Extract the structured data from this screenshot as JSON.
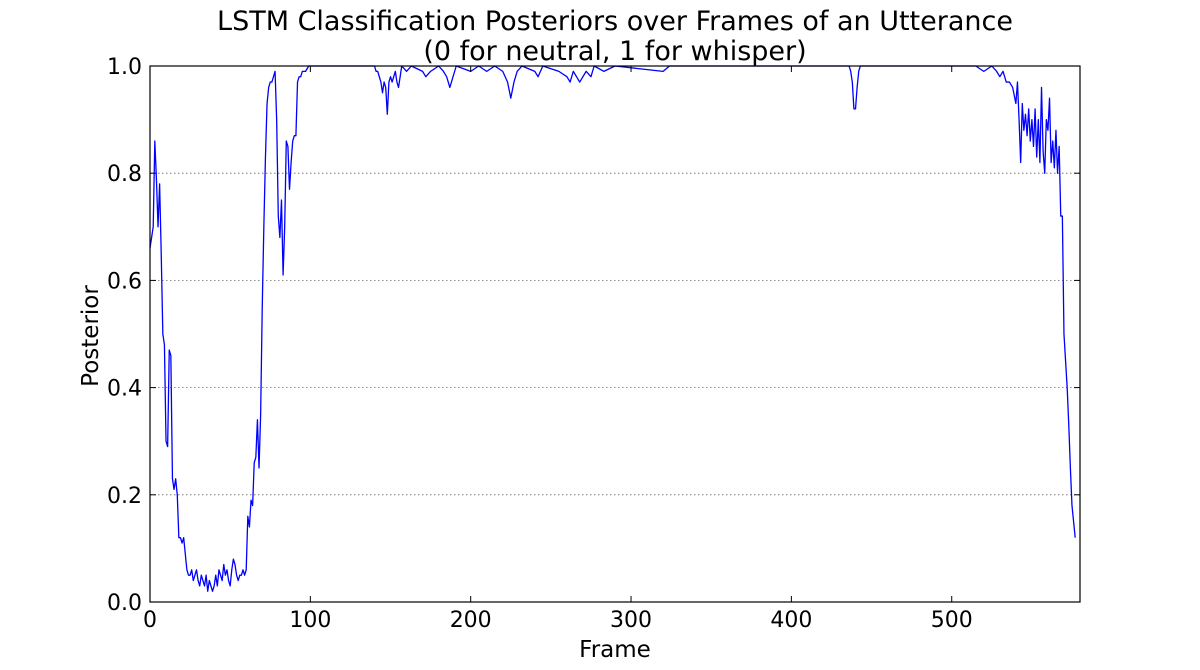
{
  "chart_data": {
    "type": "line",
    "title_lines": [
      "LSTM Classification Posteriors over Frames of an Utterance",
      "(0 for neutral, 1 for whisper)"
    ],
    "xlabel": "Frame",
    "ylabel": "Posterior",
    "xlim": [
      0,
      580
    ],
    "ylim": [
      0.0,
      1.0
    ],
    "x_ticks": [
      0,
      100,
      200,
      300,
      400,
      500
    ],
    "x_tick_labels": [
      "0",
      "100",
      "200",
      "300",
      "400",
      "500"
    ],
    "y_ticks": [
      0.0,
      0.2,
      0.4,
      0.6,
      0.8,
      1.0
    ],
    "y_tick_labels": [
      "0.0",
      "0.2",
      "0.4",
      "0.6",
      "0.8",
      "1.0"
    ],
    "grid": "horizontal dotted",
    "series": [
      {
        "color": "#0000ff",
        "points": [
          [
            0,
            0.66
          ],
          [
            1,
            0.68
          ],
          [
            2,
            0.7
          ],
          [
            3,
            0.86
          ],
          [
            4,
            0.79
          ],
          [
            5,
            0.7
          ],
          [
            6,
            0.78
          ],
          [
            7,
            0.65
          ],
          [
            8,
            0.5
          ],
          [
            9,
            0.48
          ],
          [
            10,
            0.3
          ],
          [
            11,
            0.29
          ],
          [
            12,
            0.47
          ],
          [
            13,
            0.46
          ],
          [
            14,
            0.23
          ],
          [
            15,
            0.21
          ],
          [
            16,
            0.23
          ],
          [
            17,
            0.2
          ],
          [
            18,
            0.12
          ],
          [
            19,
            0.12
          ],
          [
            20,
            0.11
          ],
          [
            21,
            0.12
          ],
          [
            22,
            0.09
          ],
          [
            23,
            0.06
          ],
          [
            24,
            0.05
          ],
          [
            25,
            0.05
          ],
          [
            26,
            0.06
          ],
          [
            27,
            0.04
          ],
          [
            28,
            0.05
          ],
          [
            29,
            0.06
          ],
          [
            30,
            0.04
          ],
          [
            31,
            0.03
          ],
          [
            32,
            0.05
          ],
          [
            33,
            0.04
          ],
          [
            34,
            0.03
          ],
          [
            35,
            0.05
          ],
          [
            36,
            0.02
          ],
          [
            37,
            0.04
          ],
          [
            38,
            0.03
          ],
          [
            39,
            0.02
          ],
          [
            40,
            0.03
          ],
          [
            41,
            0.05
          ],
          [
            42,
            0.03
          ],
          [
            43,
            0.06
          ],
          [
            44,
            0.05
          ],
          [
            45,
            0.04
          ],
          [
            46,
            0.07
          ],
          [
            47,
            0.05
          ],
          [
            48,
            0.06
          ],
          [
            49,
            0.04
          ],
          [
            50,
            0.03
          ],
          [
            51,
            0.06
          ],
          [
            52,
            0.08
          ],
          [
            53,
            0.07
          ],
          [
            54,
            0.05
          ],
          [
            55,
            0.04
          ],
          [
            56,
            0.05
          ],
          [
            57,
            0.05
          ],
          [
            58,
            0.06
          ],
          [
            59,
            0.05
          ],
          [
            60,
            0.06
          ],
          [
            61,
            0.16
          ],
          [
            62,
            0.14
          ],
          [
            63,
            0.19
          ],
          [
            64,
            0.18
          ],
          [
            65,
            0.26
          ],
          [
            66,
            0.27
          ],
          [
            67,
            0.34
          ],
          [
            68,
            0.25
          ],
          [
            69,
            0.35
          ],
          [
            70,
            0.55
          ],
          [
            71,
            0.7
          ],
          [
            72,
            0.83
          ],
          [
            73,
            0.93
          ],
          [
            74,
            0.96
          ],
          [
            75,
            0.97
          ],
          [
            76,
            0.97
          ],
          [
            77,
            0.98
          ],
          [
            78,
            0.99
          ],
          [
            79,
            0.9
          ],
          [
            80,
            0.72
          ],
          [
            81,
            0.68
          ],
          [
            82,
            0.75
          ],
          [
            83,
            0.61
          ],
          [
            84,
            0.7
          ],
          [
            85,
            0.86
          ],
          [
            86,
            0.85
          ],
          [
            87,
            0.77
          ],
          [
            88,
            0.82
          ],
          [
            89,
            0.86
          ],
          [
            90,
            0.87
          ],
          [
            91,
            0.87
          ],
          [
            92,
            0.97
          ],
          [
            93,
            0.98
          ],
          [
            94,
            0.98
          ],
          [
            95,
            0.99
          ],
          [
            97,
            0.99
          ],
          [
            99,
            1.0
          ],
          [
            140,
            1.0
          ],
          [
            141,
            0.99
          ],
          [
            142,
            0.99
          ],
          [
            143,
            0.98
          ],
          [
            144,
            0.97
          ],
          [
            145,
            0.95
          ],
          [
            146,
            0.97
          ],
          [
            147,
            0.96
          ],
          [
            148,
            0.91
          ],
          [
            149,
            0.97
          ],
          [
            150,
            0.98
          ],
          [
            151,
            0.97
          ],
          [
            152,
            0.98
          ],
          [
            153,
            0.99
          ],
          [
            154,
            0.97
          ],
          [
            155,
            0.96
          ],
          [
            156,
            0.98
          ],
          [
            157,
            1.0
          ],
          [
            160,
            0.99
          ],
          [
            163,
            1.0
          ],
          [
            170,
            0.99
          ],
          [
            172,
            0.98
          ],
          [
            175,
            0.99
          ],
          [
            180,
            1.0
          ],
          [
            183,
            0.99
          ],
          [
            185,
            0.98
          ],
          [
            187,
            0.96
          ],
          [
            189,
            0.98
          ],
          [
            191,
            1.0
          ],
          [
            200,
            0.99
          ],
          [
            205,
            1.0
          ],
          [
            210,
            0.99
          ],
          [
            215,
            1.0
          ],
          [
            220,
            0.99
          ],
          [
            223,
            0.97
          ],
          [
            225,
            0.94
          ],
          [
            227,
            0.97
          ],
          [
            229,
            0.99
          ],
          [
            232,
            1.0
          ],
          [
            240,
            0.99
          ],
          [
            242,
            0.98
          ],
          [
            245,
            1.0
          ],
          [
            255,
            0.99
          ],
          [
            260,
            0.98
          ],
          [
            262,
            0.97
          ],
          [
            264,
            0.99
          ],
          [
            266,
            0.98
          ],
          [
            268,
            0.97
          ],
          [
            270,
            0.98
          ],
          [
            272,
            0.99
          ],
          [
            275,
            0.98
          ],
          [
            277,
            1.0
          ],
          [
            283,
            0.99
          ],
          [
            290,
            1.0
          ],
          [
            320,
            0.99
          ],
          [
            324,
            1.0
          ],
          [
            436,
            1.0
          ],
          [
            437,
            0.99
          ],
          [
            438,
            0.97
          ],
          [
            439,
            0.92
          ],
          [
            440,
            0.92
          ],
          [
            441,
            0.96
          ],
          [
            442,
            0.99
          ],
          [
            443,
            1.0
          ],
          [
            515,
            1.0
          ],
          [
            520,
            0.99
          ],
          [
            525,
            1.0
          ],
          [
            528,
            0.99
          ],
          [
            530,
            0.98
          ],
          [
            532,
            0.99
          ],
          [
            534,
            0.97
          ],
          [
            536,
            0.97
          ],
          [
            538,
            0.96
          ],
          [
            540,
            0.93
          ],
          [
            541,
            0.97
          ],
          [
            542,
            0.9
          ],
          [
            543,
            0.82
          ],
          [
            544,
            0.93
          ],
          [
            545,
            0.88
          ],
          [
            546,
            0.91
          ],
          [
            547,
            0.87
          ],
          [
            548,
            0.92
          ],
          [
            549,
            0.86
          ],
          [
            550,
            0.9
          ],
          [
            551,
            0.85
          ],
          [
            552,
            0.92
          ],
          [
            553,
            0.83
          ],
          [
            554,
            0.9
          ],
          [
            555,
            0.82
          ],
          [
            556,
            0.96
          ],
          [
            557,
            0.84
          ],
          [
            558,
            0.8
          ],
          [
            559,
            0.9
          ],
          [
            560,
            0.88
          ],
          [
            561,
            0.94
          ],
          [
            562,
            0.82
          ],
          [
            563,
            0.86
          ],
          [
            564,
            0.81
          ],
          [
            565,
            0.88
          ],
          [
            566,
            0.8
          ],
          [
            567,
            0.85
          ],
          [
            568,
            0.72
          ],
          [
            569,
            0.72
          ],
          [
            570,
            0.5
          ],
          [
            571,
            0.45
          ],
          [
            572,
            0.4
          ],
          [
            573,
            0.33
          ],
          [
            574,
            0.25
          ],
          [
            575,
            0.18
          ],
          [
            576,
            0.15
          ],
          [
            577,
            0.12
          ]
        ]
      }
    ]
  }
}
